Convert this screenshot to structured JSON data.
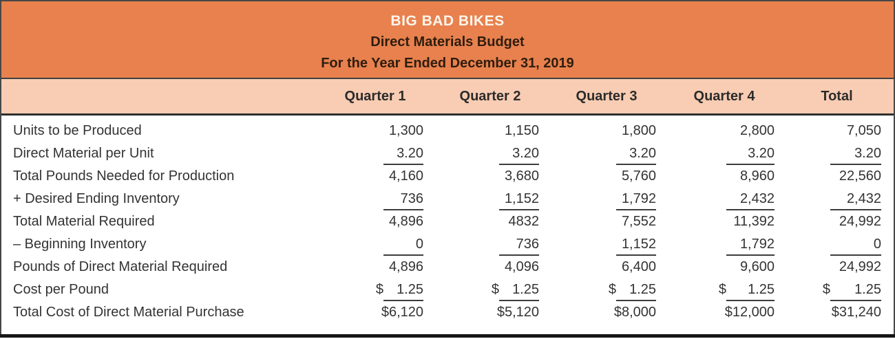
{
  "header": {
    "company": "BIG BAD BIKES",
    "statement": "Direct Materials Budget",
    "period": "For the Year Ended December 31, 2019"
  },
  "columns": [
    "Quarter 1",
    "Quarter 2",
    "Quarter 3",
    "Quarter 4",
    "Total"
  ],
  "rows": [
    {
      "label": "Units to be Produced",
      "values": [
        "1,300",
        "1,150",
        "1,800",
        "2,800",
        "7,050"
      ],
      "underline": false,
      "dollar": false
    },
    {
      "label": "Direct Material per Unit",
      "values": [
        "3.20",
        "3.20",
        "3.20",
        "3.20",
        "3.20"
      ],
      "underline": true,
      "dollar": false
    },
    {
      "label": "Total Pounds Needed for Production",
      "values": [
        "4,160",
        "3,680",
        "5,760",
        "8,960",
        "22,560"
      ],
      "underline": false,
      "dollar": false
    },
    {
      "label": "+ Desired Ending Inventory",
      "values": [
        "736",
        "1,152",
        "1,792",
        "2,432",
        "2,432"
      ],
      "underline": true,
      "dollar": false
    },
    {
      "label": "Total Material Required",
      "values": [
        "4,896",
        "4832",
        "7,552",
        "11,392",
        "24,992"
      ],
      "underline": false,
      "dollar": false
    },
    {
      "label": "– Beginning Inventory",
      "values": [
        "0",
        "736",
        "1,152",
        "1,792",
        "0"
      ],
      "underline": true,
      "dollar": false
    },
    {
      "label": "Pounds of Direct Material Required",
      "values": [
        "4,896",
        "4,096",
        "6,400",
        "9,600",
        "24,992"
      ],
      "underline": false,
      "dollar": false
    },
    {
      "label": "Cost per Pound",
      "values": [
        "1.25",
        "1.25",
        "1.25",
        "1.25",
        "1.25"
      ],
      "underline": true,
      "dollar": true
    },
    {
      "label": "Total Cost of Direct Material Purchase",
      "values": [
        "$6,120",
        "$5,120",
        "$8,000",
        "$12,000",
        "$31,240"
      ],
      "underline": false,
      "dollar": false
    }
  ],
  "colors": {
    "title_band_bg": "#E8814E",
    "column_band_bg": "#F9CDB3",
    "rule": "#3f3f3f",
    "body_text": "#333333",
    "company_text": "#FCF5EC",
    "title_text": "#2E1D0E"
  }
}
